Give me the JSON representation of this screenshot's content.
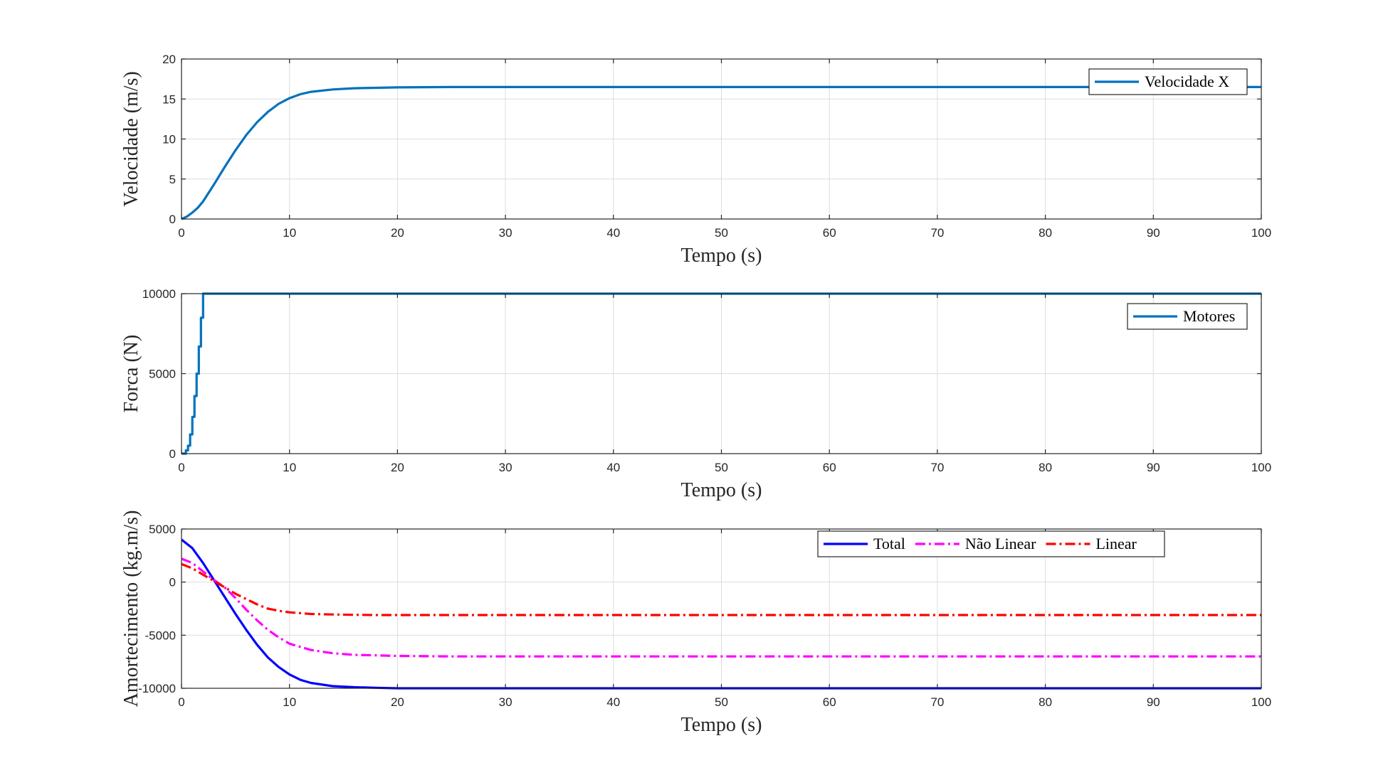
{
  "chart_data": [
    {
      "type": "line",
      "xlabel": "Tempo (s)",
      "ylabel": "Velocidade (m/s)",
      "xlim": [
        0,
        100
      ],
      "ylim": [
        0,
        20
      ],
      "xticks": [
        "0",
        "10",
        "20",
        "30",
        "40",
        "50",
        "60",
        "70",
        "80",
        "90",
        "100"
      ],
      "yticks": [
        "0",
        "5",
        "10",
        "15",
        "20"
      ],
      "grid": true,
      "legend": "top-right",
      "series": [
        {
          "name": "Velocidade X",
          "color": "#0072BD",
          "style": "solid",
          "x": [
            0,
            0.5,
            1,
            1.5,
            2,
            3,
            4,
            5,
            6,
            7,
            8,
            9,
            10,
            11,
            12,
            14,
            16,
            18,
            20,
            25,
            30,
            40,
            50,
            60,
            70,
            80,
            90,
            100
          ],
          "y": [
            0,
            0.3,
            0.8,
            1.4,
            2.2,
            4.3,
            6.5,
            8.6,
            10.5,
            12.1,
            13.4,
            14.4,
            15.1,
            15.6,
            15.9,
            16.2,
            16.35,
            16.4,
            16.45,
            16.5,
            16.5,
            16.5,
            16.5,
            16.5,
            16.5,
            16.5,
            16.5,
            16.5
          ]
        }
      ]
    },
    {
      "type": "line",
      "xlabel": "Tempo (s)",
      "ylabel": "Forca (N)",
      "xlim": [
        0,
        100
      ],
      "ylim": [
        0,
        10000
      ],
      "xticks": [
        "0",
        "10",
        "20",
        "30",
        "40",
        "50",
        "60",
        "70",
        "80",
        "90",
        "100"
      ],
      "yticks": [
        "0",
        "5000",
        "10000"
      ],
      "grid": true,
      "legend": "top-right",
      "series": [
        {
          "name": "Motores",
          "color": "#0072BD",
          "style": "solid",
          "x": [
            0,
            0.4,
            0.4,
            0.6,
            0.6,
            0.8,
            0.8,
            1.0,
            1.0,
            1.2,
            1.2,
            1.4,
            1.4,
            1.6,
            1.6,
            1.8,
            1.8,
            2.0,
            2.0,
            100
          ],
          "y": [
            0,
            0,
            200,
            200,
            500,
            500,
            1200,
            1200,
            2300,
            2300,
            3600,
            3600,
            5000,
            5000,
            6700,
            6700,
            8500,
            8500,
            10000,
            10000
          ]
        }
      ]
    },
    {
      "type": "line",
      "xlabel": "Tempo (s)",
      "ylabel": "Amortecimento (kg.m/s)",
      "xlim": [
        0,
        100
      ],
      "ylim": [
        -10000,
        5000
      ],
      "xticks": [
        "0",
        "10",
        "20",
        "30",
        "40",
        "50",
        "60",
        "70",
        "80",
        "90",
        "100"
      ],
      "yticks": [
        "-10000",
        "-5000",
        "0",
        "5000"
      ],
      "grid": true,
      "legend": "top-right",
      "series": [
        {
          "name": "Total",
          "color": "#0000FF",
          "style": "solid",
          "x": [
            0,
            1,
            2,
            3,
            4,
            5,
            6,
            7,
            8,
            9,
            10,
            11,
            12,
            14,
            16,
            18,
            20,
            25,
            30,
            40,
            50,
            60,
            70,
            80,
            90,
            100
          ],
          "y": [
            4000,
            3200,
            1800,
            200,
            -1400,
            -3000,
            -4500,
            -5900,
            -7100,
            -8000,
            -8700,
            -9200,
            -9500,
            -9800,
            -9900,
            -9950,
            -10000,
            -10000,
            -10000,
            -10000,
            -10000,
            -10000,
            -10000,
            -10000,
            -10000,
            -10000
          ]
        },
        {
          "name": "Não Linear",
          "color": "#FF00FF",
          "style": "dashdot",
          "x": [
            0,
            1,
            2,
            3,
            4,
            5,
            6,
            7,
            8,
            9,
            10,
            12,
            14,
            16,
            18,
            20,
            25,
            30,
            40,
            50,
            60,
            70,
            80,
            90,
            100
          ],
          "y": [
            2200,
            1800,
            1000,
            200,
            -500,
            -1500,
            -2600,
            -3600,
            -4500,
            -5200,
            -5800,
            -6400,
            -6700,
            -6850,
            -6900,
            -6950,
            -7000,
            -7000,
            -7000,
            -7000,
            -7000,
            -7000,
            -7000,
            -7000,
            -7000
          ]
        },
        {
          "name": "Linear",
          "color": "#FF0000",
          "style": "dashdot",
          "x": [
            0,
            1,
            2,
            3,
            4,
            5,
            6,
            7,
            8,
            9,
            10,
            12,
            14,
            16,
            18,
            20,
            25,
            30,
            40,
            50,
            60,
            70,
            80,
            90,
            100
          ],
          "y": [
            1700,
            1300,
            700,
            100,
            -500,
            -1100,
            -1600,
            -2100,
            -2500,
            -2700,
            -2850,
            -3000,
            -3050,
            -3080,
            -3100,
            -3100,
            -3100,
            -3100,
            -3100,
            -3100,
            -3100,
            -3100,
            -3100,
            -3100,
            -3100
          ]
        }
      ]
    }
  ]
}
